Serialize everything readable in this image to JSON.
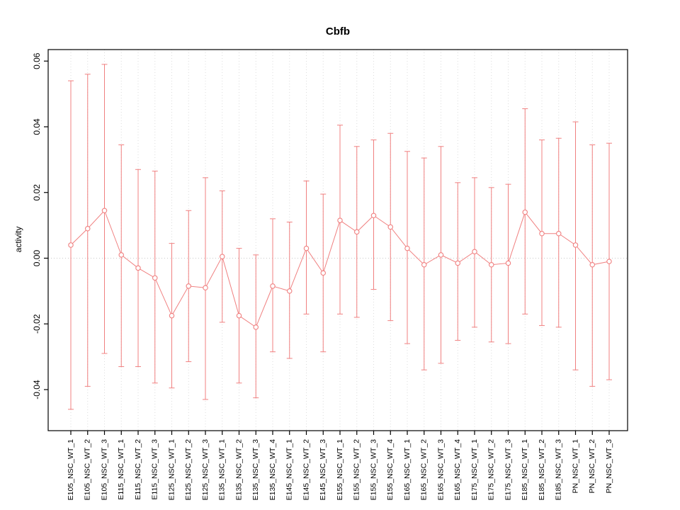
{
  "chart_data": {
    "type": "line",
    "title": "Cbfb",
    "xlabel": "",
    "ylabel": "activity",
    "grid": "dotted-vertical-per-category-plus-zero-line",
    "legend": "none",
    "marker": "open-circle",
    "error_bars": true,
    "accent_color": "#f08080",
    "grid_color": "#dcdcdc",
    "zero_line_color": "#c8c8c8",
    "axis_color": "#000000",
    "ylim": [
      -0.0525,
      0.0635
    ],
    "ytick_values": [
      -0.04,
      -0.02,
      0.0,
      0.02,
      0.04,
      0.06
    ],
    "ytick_labels": [
      "-0.04",
      "-0.02",
      "0.00",
      "0.02",
      "0.04",
      "0.06"
    ],
    "categories": [
      "E105_NSC_WT_1",
      "E105_NSC_WT_2",
      "E105_NSC_WT_3",
      "E115_NSC_WT_1",
      "E115_NSC_WT_2",
      "E115_NSC_WT_3",
      "E125_NSC_WT_1",
      "E125_NSC_WT_2",
      "E125_NSC_WT_3",
      "E135_NSC_WT_1",
      "E135_NSC_WT_2",
      "E135_NSC_WT_3",
      "E135_NSC_WT_4",
      "E145_NSC_WT_1",
      "E145_NSC_WT_2",
      "E145_NSC_WT_3",
      "E155_NSC_WT_1",
      "E155_NSC_WT_2",
      "E155_NSC_WT_3",
      "E155_NSC_WT_4",
      "E165_NSC_WT_1",
      "E165_NSC_WT_2",
      "E165_NSC_WT_3",
      "E165_NSC_WT_4",
      "E175_NSC_WT_1",
      "E175_NSC_WT_2",
      "E175_NSC_WT_3",
      "E185_NSC_WT_1",
      "E185_NSC_WT_2",
      "E185_NSC_WT_3",
      "PN_NSC_WT_1",
      "PN_NSC_WT_2",
      "PN_NSC_WT_3"
    ],
    "values": [
      0.004,
      0.009,
      0.0145,
      0.001,
      -0.003,
      -0.006,
      -0.0175,
      -0.0085,
      -0.009,
      0.0005,
      -0.0175,
      -0.021,
      -0.0085,
      -0.01,
      0.003,
      -0.0045,
      0.0115,
      0.008,
      0.013,
      0.0095,
      0.003,
      -0.002,
      0.001,
      -0.0015,
      0.002,
      -0.002,
      -0.0015,
      0.014,
      0.0075,
      0.0075,
      0.004,
      -0.002,
      -0.001
    ],
    "upper": [
      0.054,
      0.056,
      0.059,
      0.0345,
      0.027,
      0.0265,
      0.0045,
      0.0145,
      0.0245,
      0.0205,
      0.003,
      0.001,
      0.012,
      0.011,
      0.0235,
      0.0195,
      0.0405,
      0.034,
      0.036,
      0.038,
      0.0325,
      0.0305,
      0.034,
      0.023,
      0.0245,
      0.0215,
      0.0225,
      0.0455,
      0.036,
      0.0365,
      0.0415,
      0.0345,
      0.035
    ],
    "lower": [
      -0.046,
      -0.039,
      -0.029,
      -0.033,
      -0.033,
      -0.038,
      -0.0395,
      -0.0315,
      -0.043,
      -0.0195,
      -0.038,
      -0.0425,
      -0.0285,
      -0.0305,
      -0.017,
      -0.0285,
      -0.017,
      -0.018,
      -0.0095,
      -0.019,
      -0.026,
      -0.034,
      -0.032,
      -0.025,
      -0.021,
      -0.0255,
      -0.026,
      -0.017,
      -0.0205,
      -0.021,
      -0.034,
      -0.039,
      -0.037
    ]
  }
}
